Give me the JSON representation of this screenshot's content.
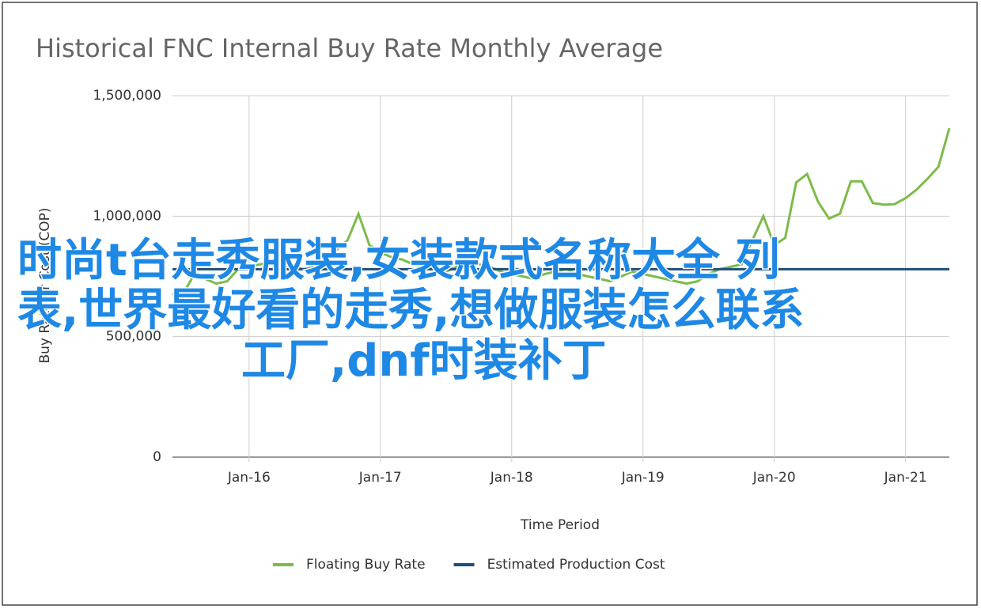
{
  "chart_data": {
    "type": "line",
    "title": "Historical FNC Internal Buy Rate Monthly Average",
    "x_label": "Time Period",
    "y_label": "Buy Rate or Cost (COP)",
    "x": [
      "Jun-15",
      "Jul-15",
      "Aug-15",
      "Sep-15",
      "Oct-15",
      "Nov-15",
      "Dec-15",
      "Jan-16",
      "Feb-16",
      "Mar-16",
      "Apr-16",
      "May-16",
      "Jun-16",
      "Jul-16",
      "Aug-16",
      "Sep-16",
      "Oct-16",
      "Nov-16",
      "Dec-16",
      "Jan-17",
      "Feb-17",
      "Mar-17",
      "Apr-17",
      "May-17",
      "Jun-17",
      "Jul-17",
      "Aug-17",
      "Sep-17",
      "Oct-17",
      "Nov-17",
      "Dec-17",
      "Jan-18",
      "Feb-18",
      "Mar-18",
      "Apr-18",
      "May-18",
      "Jun-18",
      "Jul-18",
      "Aug-18",
      "Sep-18",
      "Oct-18",
      "Nov-18",
      "Dec-18",
      "Jan-19",
      "Feb-19",
      "Mar-19",
      "Apr-19",
      "May-19",
      "Jun-19",
      "Jul-19",
      "Aug-19",
      "Sep-19",
      "Oct-19",
      "Nov-19",
      "Dec-19",
      "Jan-20",
      "Feb-20",
      "Mar-20",
      "Apr-20",
      "May-20",
      "Jun-20",
      "Jul-20",
      "Aug-20",
      "Sep-20",
      "Oct-20",
      "Nov-20",
      "Dec-20",
      "Jan-21",
      "Feb-21",
      "Mar-21",
      "Apr-21",
      "May-21"
    ],
    "series": [
      {
        "name": "Floating Buy Rate",
        "color": "#7cbb4a",
        "values": [
          676000,
          680000,
          760000,
          740000,
          720000,
          730000,
          780000,
          790000,
          800000,
          810000,
          800000,
          790000,
          780000,
          790000,
          820000,
          860000,
          900000,
          1010000,
          880000,
          850000,
          830000,
          820000,
          800000,
          790000,
          780000,
          770000,
          790000,
          810000,
          800000,
          790000,
          770000,
          760000,
          750000,
          740000,
          760000,
          770000,
          780000,
          760000,
          750000,
          740000,
          730000,
          750000,
          770000,
          760000,
          750000,
          740000,
          730000,
          720000,
          730000,
          760000,
          780000,
          790000,
          800000,
          900000,
          1000000,
          880000,
          910000,
          1140000,
          1175000,
          1060000,
          990000,
          1010000,
          1145000,
          1145000,
          1055000,
          1048000,
          1050000,
          1075000,
          1110000,
          1155000,
          1205000,
          1365000
        ]
      },
      {
        "name": "Estimated Production Cost",
        "color": "#1f4e79",
        "values": [
          780000,
          780000,
          780000,
          780000,
          780000,
          780000,
          780000,
          780000,
          780000,
          780000,
          780000,
          780000,
          780000,
          780000,
          780000,
          780000,
          780000,
          780000,
          780000,
          780000,
          780000,
          780000,
          780000,
          780000,
          780000,
          780000,
          780000,
          780000,
          780000,
          780000,
          780000,
          780000,
          780000,
          780000,
          780000,
          780000,
          780000,
          780000,
          780000,
          780000,
          780000,
          780000,
          780000,
          780000,
          780000,
          780000,
          780000,
          780000,
          780000,
          780000,
          780000,
          780000,
          780000,
          780000,
          780000,
          780000,
          780000,
          780000,
          780000,
          780000,
          780000,
          780000,
          780000,
          780000,
          780000,
          780000,
          780000,
          780000,
          780000,
          780000,
          780000,
          780000
        ]
      }
    ],
    "xlim": [
      "Jun-15",
      "May-21"
    ],
    "xticks": [
      "Jan-16",
      "Jan-17",
      "Jan-18",
      "Jan-19",
      "Jan-20",
      "Jan-21"
    ],
    "ylim": [
      0,
      1500000
    ],
    "yticks": [
      0,
      {
        "value": 500000,
        "label": "500,000"
      },
      {
        "value": 1000000,
        "label": "1,000,000"
      },
      {
        "value": 1500000,
        "label": "1,500,000"
      }
    ],
    "grid": true,
    "legend": "bottom"
  },
  "overlay_text": [
    "时尚t台走秀服装,女装款式名称大全 列",
    "表,世界最好看的走秀,想做服装怎么联系",
    "工厂,dnf时装补丁"
  ]
}
